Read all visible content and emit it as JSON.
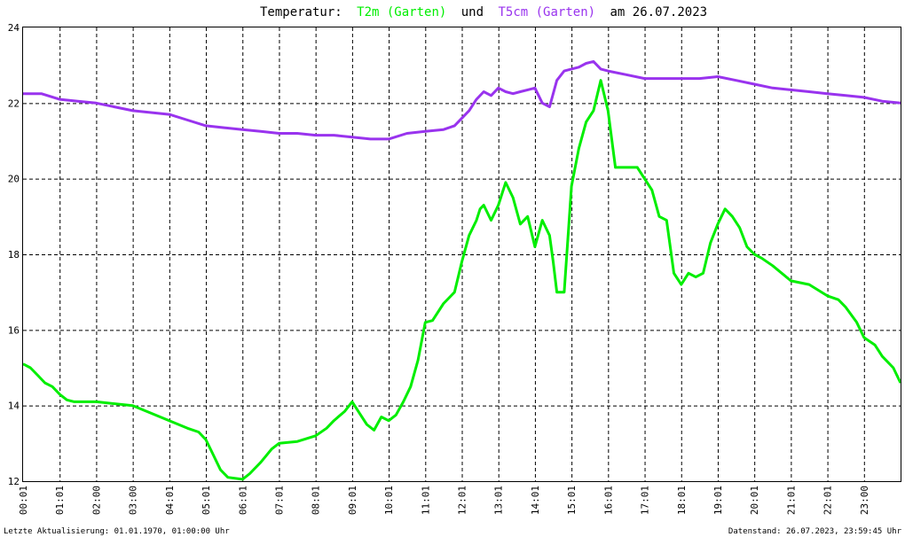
{
  "title": {
    "prefix": "Temperatur:",
    "series1": "T2m (Garten)",
    "connector": "und",
    "series2": "T5cm (Garten)",
    "date_part": "am 26.07.2023"
  },
  "footer": {
    "left": "Letzte Aktualisierung: 01.01.1970, 01:00:00 Uhr",
    "right": "Datenstand: 26.07.2023, 23:59:45 Uhr"
  },
  "colors": {
    "series1": "#00ee00",
    "series2": "#9933ee",
    "grid": "#000000",
    "background": "#ffffff"
  },
  "chart_data": {
    "type": "line",
    "xlim": [
      0,
      24
    ],
    "ylim": [
      12,
      24
    ],
    "y_ticks": [
      12,
      14,
      16,
      18,
      20,
      22,
      24
    ],
    "x_tick_labels": [
      "00:01",
      "01:01",
      "02:00",
      "03:00",
      "04:01",
      "05:01",
      "06:01",
      "07:01",
      "08:01",
      "09:01",
      "10:01",
      "11:01",
      "12:01",
      "13:01",
      "14:01",
      "15:01",
      "16:01",
      "17:01",
      "18:01",
      "19:01",
      "20:01",
      "21:01",
      "22:01",
      "23:00"
    ],
    "grid": true,
    "series": [
      {
        "name": "T2m (Garten)",
        "x": [
          0,
          0.2,
          0.4,
          0.6,
          0.8,
          1.0,
          1.2,
          1.4,
          2.0,
          3.0,
          3.5,
          4.0,
          4.5,
          4.8,
          5.0,
          5.2,
          5.4,
          5.6,
          6.0,
          6.2,
          6.5,
          6.8,
          7.0,
          7.5,
          8.0,
          8.3,
          8.5,
          8.8,
          9.0,
          9.2,
          9.4,
          9.6,
          9.8,
          10.0,
          10.2,
          10.4,
          10.6,
          10.8,
          11.0,
          11.2,
          11.5,
          11.8,
          12.0,
          12.2,
          12.4,
          12.5,
          12.6,
          12.8,
          13.0,
          13.2,
          13.4,
          13.6,
          13.8,
          14.0,
          14.2,
          14.4,
          14.5,
          14.6,
          14.8,
          15.0,
          15.2,
          15.4,
          15.6,
          15.8,
          16.0,
          16.2,
          16.5,
          16.8,
          17.0,
          17.2,
          17.4,
          17.6,
          17.8,
          18.0,
          18.2,
          18.4,
          18.6,
          18.8,
          19.0,
          19.2,
          19.4,
          19.6,
          19.8,
          20.0,
          20.2,
          20.5,
          21.0,
          21.5,
          22.0,
          22.3,
          22.5,
          22.8,
          23.0,
          23.3,
          23.5,
          23.8,
          24.0
        ],
        "y": [
          15.1,
          15.0,
          14.8,
          14.6,
          14.5,
          14.3,
          14.15,
          14.1,
          14.1,
          14.0,
          13.8,
          13.6,
          13.4,
          13.3,
          13.1,
          12.7,
          12.3,
          12.1,
          12.05,
          12.2,
          12.5,
          12.85,
          13.0,
          13.05,
          13.2,
          13.4,
          13.6,
          13.85,
          14.1,
          13.8,
          13.5,
          13.35,
          13.7,
          13.6,
          13.75,
          14.1,
          14.5,
          15.2,
          16.2,
          16.25,
          16.7,
          17.0,
          17.8,
          18.5,
          18.9,
          19.2,
          19.3,
          18.9,
          19.3,
          19.9,
          19.5,
          18.8,
          19.0,
          18.2,
          18.9,
          18.5,
          17.8,
          17.0,
          17.0,
          19.8,
          20.8,
          21.5,
          21.8,
          22.6,
          21.8,
          20.3,
          20.3,
          20.3,
          20.0,
          19.7,
          19.0,
          18.9,
          17.5,
          17.2,
          17.5,
          17.4,
          17.5,
          18.3,
          18.8,
          19.2,
          19.0,
          18.7,
          18.2,
          18.0,
          17.9,
          17.7,
          17.3,
          17.2,
          16.9,
          16.8,
          16.6,
          16.2,
          15.8,
          15.6,
          15.3,
          15.0,
          14.6
        ]
      },
      {
        "name": "T5cm (Garten)",
        "x": [
          0,
          0.5,
          1.0,
          1.5,
          2.0,
          2.5,
          3.0,
          3.5,
          4.0,
          4.5,
          5.0,
          5.5,
          6.0,
          6.5,
          7.0,
          7.5,
          8.0,
          8.5,
          9.0,
          9.5,
          10.0,
          10.5,
          11.0,
          11.5,
          11.8,
          12.0,
          12.2,
          12.4,
          12.6,
          12.8,
          13.0,
          13.2,
          13.4,
          13.6,
          13.8,
          14.0,
          14.2,
          14.4,
          14.6,
          14.8,
          15.0,
          15.2,
          15.4,
          15.6,
          15.8,
          16.0,
          16.5,
          17.0,
          17.5,
          18.0,
          18.5,
          19.0,
          19.5,
          20.0,
          20.5,
          21.0,
          21.5,
          22.0,
          22.5,
          23.0,
          23.5,
          24.0
        ],
        "y": [
          22.25,
          22.25,
          22.1,
          22.05,
          22.0,
          21.9,
          21.8,
          21.75,
          21.7,
          21.55,
          21.4,
          21.35,
          21.3,
          21.25,
          21.2,
          21.2,
          21.15,
          21.15,
          21.1,
          21.05,
          21.05,
          21.2,
          21.25,
          21.3,
          21.4,
          21.6,
          21.8,
          22.1,
          22.3,
          22.2,
          22.4,
          22.3,
          22.25,
          22.3,
          22.35,
          22.4,
          22.0,
          21.9,
          22.6,
          22.85,
          22.9,
          22.95,
          23.05,
          23.1,
          22.9,
          22.85,
          22.75,
          22.65,
          22.65,
          22.65,
          22.65,
          22.7,
          22.6,
          22.5,
          22.4,
          22.35,
          22.3,
          22.25,
          22.2,
          22.15,
          22.05,
          22.0
        ]
      }
    ]
  }
}
